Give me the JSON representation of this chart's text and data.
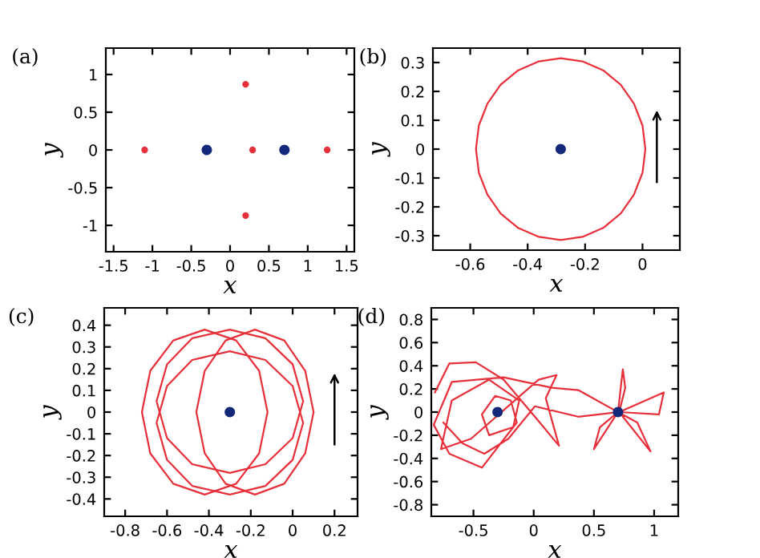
{
  "chart_data": [
    {
      "type": "scatter",
      "xlabel": "x",
      "ylabel": "y",
      "annotations": [
        "(a)"
      ],
      "xlim": [
        -1.6,
        1.6
      ],
      "ylim": [
        -1.35,
        1.35
      ],
      "xticks": [
        -1.5,
        -1,
        -0.5,
        0,
        0.5,
        1,
        1.5
      ],
      "yticks": [
        -1,
        -0.5,
        0,
        0.5,
        1
      ],
      "marker": "circle",
      "series": [
        {
          "color": "#e8303a",
          "x": [
            -1.1,
            0.2,
            0.29,
            0.2,
            1.25
          ],
          "values": [
            0,
            0.87,
            0,
            -0.87,
            0
          ]
        },
        {
          "color": "#14287a",
          "x": [
            -0.3,
            0.7
          ],
          "values": [
            0,
            0
          ]
        }
      ]
    },
    {
      "type": "line",
      "xlabel": "x",
      "ylabel": "y",
      "annotations": [
        "(b)"
      ],
      "xlim": [
        -0.73,
        0.13
      ],
      "ylim": [
        -0.35,
        0.35
      ],
      "xticks": [
        -0.6,
        -0.4,
        -0.2,
        0
      ],
      "yticks": [
        -0.3,
        -0.2,
        -0.1,
        0,
        0.1,
        0.2,
        0.3
      ],
      "series": [
        {
          "color": "#e8303a",
          "x": [
            0.01,
            0.0,
            -0.03,
            -0.076,
            -0.137,
            -0.209,
            -0.285,
            -0.361,
            -0.433,
            -0.494,
            -0.54,
            -0.57,
            -0.58,
            -0.57,
            -0.54,
            -0.494,
            -0.433,
            -0.361,
            -0.285,
            -0.209,
            -0.137,
            -0.076,
            -0.03,
            0.0,
            0.01,
            0.0
          ],
          "values": [
            0,
            0.082,
            0.158,
            0.223,
            0.273,
            0.304,
            0.315,
            0.304,
            0.273,
            0.223,
            0.158,
            0.082,
            0,
            -0.082,
            -0.158,
            -0.223,
            -0.273,
            -0.304,
            -0.315,
            -0.304,
            -0.273,
            -0.223,
            -0.158,
            -0.082,
            0,
            0.082
          ]
        },
        {
          "type": "scatter",
          "marker": "circle",
          "color": "#14287a",
          "x": [
            -0.285
          ],
          "values": [
            0
          ]
        }
      ]
    },
    {
      "type": "line",
      "xlabel": "x",
      "ylabel": "y",
      "annotations": [
        "(c)"
      ],
      "xlim": [
        -0.9,
        0.31
      ],
      "ylim": [
        -0.48,
        0.48
      ],
      "xticks": [
        -0.8,
        -0.6,
        -0.4,
        -0.2,
        0,
        0.2
      ],
      "yticks": [
        -0.4,
        -0.3,
        -0.2,
        -0.1,
        0,
        0.1,
        0.2,
        0.3,
        0.4
      ],
      "series": [
        {
          "color": "#e8303a",
          "x": [
            -0.12,
            -0.16,
            -0.27,
            -0.42,
            -0.57,
            -0.68,
            -0.72,
            -0.68,
            -0.57,
            -0.42,
            -0.27,
            -0.16,
            -0.12,
            -0.16
          ],
          "values": [
            0,
            0.19,
            0.33,
            0.38,
            0.33,
            0.19,
            0,
            -0.19,
            -0.33,
            -0.38,
            -0.33,
            -0.19,
            0,
            0.19
          ]
        },
        {
          "color": "#e8303a",
          "x": [
            0.1,
            0.06,
            -0.04,
            -0.18,
            -0.32,
            -0.42,
            -0.46,
            -0.42,
            -0.32,
            -0.18,
            -0.04,
            0.06,
            0.1,
            0.06
          ],
          "values": [
            0,
            0.19,
            0.33,
            0.38,
            0.33,
            0.19,
            0,
            -0.19,
            -0.33,
            -0.38,
            -0.33,
            -0.19,
            0,
            0.19
          ]
        },
        {
          "color": "#e8303a",
          "x": [
            0.05,
            0.0,
            -0.13,
            -0.3,
            -0.48,
            -0.6,
            -0.65,
            -0.6,
            -0.48,
            -0.3,
            -0.13,
            0.0,
            0.05,
            0.0
          ],
          "values": [
            0.05,
            0.22,
            0.34,
            0.38,
            0.34,
            0.22,
            0.05,
            -0.12,
            -0.24,
            -0.28,
            -0.24,
            -0.12,
            0.05,
            0.22
          ]
        },
        {
          "color": "#e8303a",
          "x": [
            0.05,
            0.0,
            -0.13,
            -0.3,
            -0.48,
            -0.6,
            -0.65,
            -0.6,
            -0.48,
            -0.3,
            -0.13,
            0.0,
            0.05,
            0.0
          ],
          "values": [
            -0.05,
            0.12,
            0.24,
            0.28,
            0.24,
            0.12,
            -0.05,
            -0.22,
            -0.34,
            -0.38,
            -0.34,
            -0.22,
            -0.05,
            0.12
          ]
        },
        {
          "type": "scatter",
          "marker": "circle",
          "color": "#14287a",
          "x": [
            -0.3
          ],
          "values": [
            0
          ]
        }
      ]
    },
    {
      "type": "line",
      "xlabel": "x",
      "ylabel": "y",
      "annotations": [
        "(d)"
      ],
      "xlim": [
        -0.85,
        1.2
      ],
      "ylim": [
        -0.9,
        0.9
      ],
      "xticks": [
        -0.5,
        0,
        0.5,
        1
      ],
      "yticks": [
        -0.8,
        -0.6,
        -0.4,
        -0.2,
        0,
        0.2,
        0.4,
        0.6,
        0.8
      ],
      "series": [
        {
          "color": "#e8303a",
          "x": [
            -0.82,
            -0.7,
            -0.48,
            -0.25,
            0.01,
            0.21,
            0.1,
            0.19,
            0.04,
            -0.52,
            -0.77,
            -0.68,
            -0.37,
            -0.12,
            -0.17,
            -0.37,
            -0.43,
            -0.32,
            -0.19,
            -0.14,
            -0.43,
            -0.7,
            -0.83,
            -0.68,
            -0.25,
            0.15,
            0.37,
            0.7,
            0.74,
            0.76,
            0.71,
            1.08,
            1.04,
            0.71,
            0.97,
            0.86,
            0.7,
            0.5,
            0.55,
            0.7,
            0.37,
            0.01,
            -0.21,
            -0.41,
            -0.59,
            -0.75
          ],
          "values": [
            0.17,
            0.42,
            0.43,
            0.28,
            -0.04,
            -0.29,
            0.12,
            0.32,
            0.28,
            -0.23,
            -0.32,
            0.1,
            0.28,
            0.1,
            -0.13,
            -0.2,
            -0.02,
            0.14,
            0.1,
            -0.09,
            -0.48,
            -0.36,
            -0.11,
            0.26,
            0.3,
            0.21,
            0.19,
            0,
            0.37,
            0.21,
            0,
            0.17,
            -0.02,
            0,
            -0.34,
            -0.09,
            0,
            -0.32,
            -0.13,
            0,
            -0.04,
            0.05,
            -0.23,
            -0.36,
            -0.27,
            -0.09
          ]
        },
        {
          "type": "scatter",
          "marker": "circle",
          "color": "#14287a",
          "x": [
            -0.3,
            0.7
          ],
          "values": [
            0,
            0
          ]
        }
      ]
    }
  ]
}
